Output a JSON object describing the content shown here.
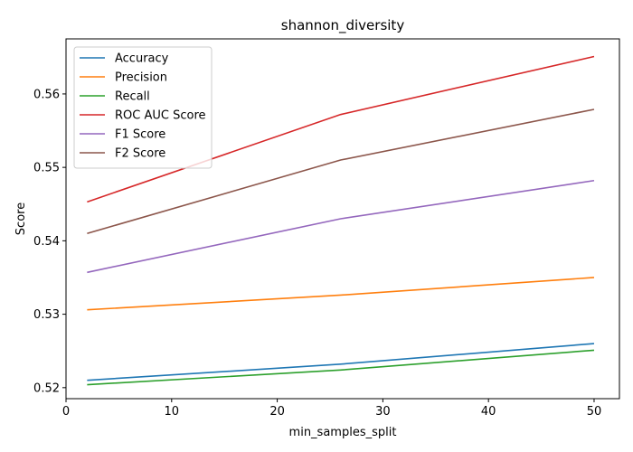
{
  "chart_data": {
    "type": "line",
    "title": "shannon_diversity",
    "xlabel": "min_samples_split",
    "ylabel": "Score",
    "x": [
      2,
      26,
      50
    ],
    "xlim": [
      0,
      52.4
    ],
    "ylim": [
      0.5185,
      0.5675
    ],
    "xticks": [
      0,
      10,
      20,
      30,
      40,
      50
    ],
    "yticks": [
      0.52,
      0.53,
      0.54,
      0.55,
      0.56
    ],
    "ytick_labels": [
      "0.52",
      "0.53",
      "0.54",
      "0.55",
      "0.56"
    ],
    "grid": false,
    "legend_position": "top-left",
    "series": [
      {
        "name": "Accuracy",
        "color": "#1f77b4",
        "values": [
          0.521,
          0.5232,
          0.526
        ]
      },
      {
        "name": "Precision",
        "color": "#ff7f0e",
        "values": [
          0.5306,
          0.5326,
          0.535
        ]
      },
      {
        "name": "Recall",
        "color": "#2ca02c",
        "values": [
          0.5204,
          0.5224,
          0.5251
        ]
      },
      {
        "name": "ROC AUC Score",
        "color": "#d62728",
        "values": [
          0.5453,
          0.5572,
          0.5651
        ]
      },
      {
        "name": "F1 Score",
        "color": "#9467bd",
        "values": [
          0.5357,
          0.543,
          0.5482
        ]
      },
      {
        "name": "F2 Score",
        "color": "#8c564b",
        "values": [
          0.541,
          0.551,
          0.5579
        ]
      }
    ]
  }
}
